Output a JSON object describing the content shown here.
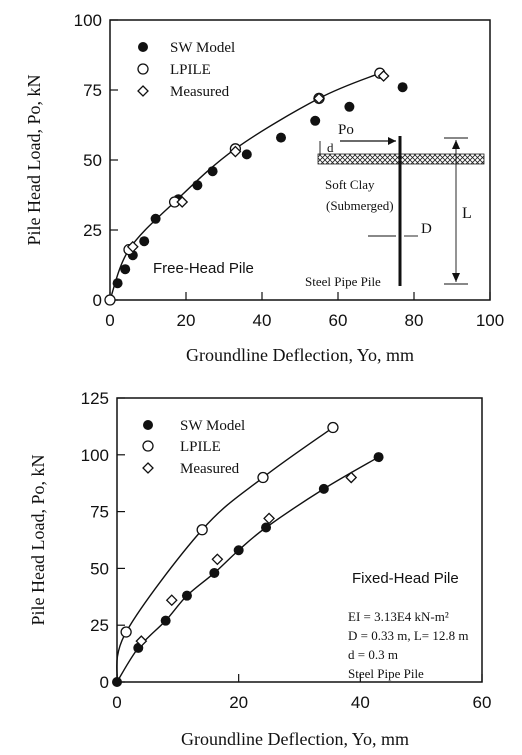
{
  "chart_data": [
    {
      "type": "scatter",
      "title": "",
      "xlabel": "Groundline Deflection, Yo, mm",
      "ylabel": "Pile Head Load, Po, kN",
      "xlim": [
        0,
        100
      ],
      "ylim": [
        0,
        100
      ],
      "xticks": [
        "0",
        "20",
        "40",
        "60",
        "80",
        "100"
      ],
      "yticks": [
        "0",
        "25",
        "50",
        "75",
        "100"
      ],
      "legend_position": "top-left",
      "legend": [
        "SW Model",
        "LPILE",
        "Measured"
      ],
      "annotation": "Free-Head Pile",
      "diagram": {
        "Po": "Po",
        "d": "d",
        "soil": "Soft Clay",
        "soil2": "(Submerged)",
        "D": "D",
        "L": "L",
        "pile": "Steel Pipe Pile"
      },
      "series": [
        {
          "name": "SW Model",
          "marker": "filled-circle",
          "x": [
            0,
            2,
            4,
            6,
            9,
            12,
            18,
            23,
            27,
            36,
            45,
            54,
            63,
            77
          ],
          "y": [
            0,
            6,
            11,
            16,
            21,
            29,
            36,
            41,
            46,
            52,
            58,
            64,
            69,
            76
          ]
        },
        {
          "name": "LPILE",
          "marker": "open-circle",
          "line": true,
          "x": [
            0,
            5,
            17,
            33,
            55,
            71
          ],
          "y": [
            0,
            18,
            35,
            54,
            72,
            81
          ]
        },
        {
          "name": "Measured",
          "marker": "open-diamond",
          "x": [
            6,
            19,
            33,
            55,
            72
          ],
          "y": [
            19,
            35,
            53,
            72,
            80
          ]
        }
      ]
    },
    {
      "type": "scatter",
      "title": "",
      "xlabel": "Groundline Deflection, Yo, mm",
      "ylabel": "Pile Head Load, Po, kN",
      "xlim": [
        0,
        60
      ],
      "ylim": [
        0,
        125
      ],
      "xticks": [
        "0",
        "20",
        "40",
        "60"
      ],
      "yticks": [
        "0",
        "25",
        "50",
        "75",
        "100",
        "125"
      ],
      "legend_position": "top-left",
      "legend": [
        "SW Model",
        "LPILE",
        "Measured"
      ],
      "annotation": "Fixed-Head Pile",
      "info": [
        "EI = 3.13E4 kN-m²",
        "D = 0.33 m, L= 12.8 m",
        "d = 0.3 m",
        "Steel Pipe Pile"
      ],
      "series": [
        {
          "name": "SW Model",
          "marker": "filled-circle",
          "line": true,
          "x": [
            0,
            3.5,
            8,
            11.5,
            16,
            20,
            24.5,
            34,
            43
          ],
          "y": [
            0,
            15,
            27,
            38,
            48,
            58,
            68,
            85,
            99
          ]
        },
        {
          "name": "LPILE",
          "marker": "open-circle",
          "line": true,
          "x": [
            1.5,
            14,
            24,
            35.5
          ],
          "y": [
            22,
            67,
            90,
            112
          ]
        },
        {
          "name": "Measured",
          "marker": "open-diamond",
          "x": [
            4,
            9,
            16.5,
            25,
            38.5
          ],
          "y": [
            18,
            36,
            54,
            72,
            90
          ]
        }
      ]
    }
  ]
}
